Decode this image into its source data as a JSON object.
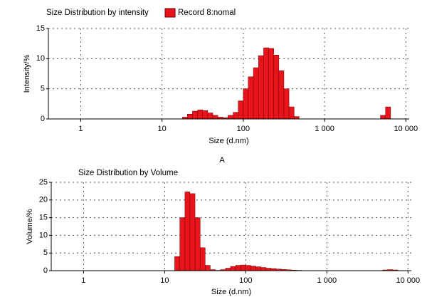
{
  "caption": "A",
  "chart_data": [
    {
      "type": "histogram",
      "title": "Size Distribution by intensity",
      "x_label": "Size (d.nm)",
      "y_label": "Intensity/%",
      "log_x": true,
      "grid": true,
      "legend": "top",
      "xlim": [
        0.4,
        11000
      ],
      "xticks": [
        1,
        10,
        100,
        {
          "value": 1000,
          "label": "1 000"
        },
        {
          "value": 10000,
          "label": "10 000"
        }
      ],
      "ylim": [
        0,
        15
      ],
      "yticks": [
        0,
        5,
        10,
        15
      ],
      "bins": [
        17.8,
        20.5,
        23.7,
        27.4,
        31.6,
        36.5,
        42.2,
        48.7,
        56.2,
        64.9,
        75.0,
        86.6,
        100,
        115,
        133,
        154,
        178,
        205,
        237,
        274,
        316,
        365,
        422,
        487,
        562,
        649,
        750,
        866,
        1000,
        1155,
        1334,
        1540,
        1778,
        2054,
        2371,
        2738,
        3162,
        3652,
        4217,
        4870,
        5623,
        6494,
        7499
      ],
      "series": [
        {
          "name": "Record 8:nomal",
          "color": "#e8141c",
          "values": [
            0.3,
            0.8,
            1.3,
            1.5,
            1.4,
            1.0,
            0.6,
            0.3,
            0.2,
            0.6,
            1.1,
            3.0,
            5.0,
            7.0,
            8.5,
            10.5,
            11.8,
            11.7,
            10.6,
            8.0,
            5.0,
            2.0,
            0.4,
            0,
            0,
            0,
            0,
            0,
            0,
            0,
            0,
            0,
            0,
            0,
            0,
            0,
            0,
            0,
            0,
            0.6,
            2.0,
            0
          ]
        }
      ]
    },
    {
      "type": "histogram",
      "title": "Size Distribution by Volume",
      "x_label": "Size (d.nm)",
      "y_label": "Volume/%",
      "log_x": true,
      "grid": true,
      "xlim": [
        0.4,
        11000
      ],
      "xticks": [
        1,
        10,
        100,
        {
          "value": 1000,
          "label": "1 000"
        },
        {
          "value": 10000,
          "label": "10 000"
        }
      ],
      "ylim": [
        0,
        25
      ],
      "yticks": [
        0,
        5,
        10,
        15,
        20,
        25
      ],
      "bins": [
        13.3,
        15.4,
        17.8,
        20.5,
        23.7,
        27.4,
        31.6,
        36.5,
        42.2,
        48.7,
        56.2,
        64.9,
        75.0,
        86.6,
        100,
        115,
        133,
        154,
        178,
        205,
        237,
        274,
        316,
        365,
        422,
        487,
        562,
        649,
        750,
        866,
        1000,
        1155,
        1334,
        1540,
        1778,
        2054,
        2371,
        2738,
        3162,
        3652,
        4217,
        4870,
        5623,
        6494,
        7499
      ],
      "color": "#e8141c",
      "values": [
        4.0,
        15.0,
        22.3,
        21.8,
        15.0,
        6.5,
        1.5,
        0.3,
        0.1,
        0.3,
        0.7,
        1.2,
        1.5,
        1.6,
        1.5,
        1.3,
        1.1,
        0.9,
        0.7,
        0.6,
        0.45,
        0.35,
        0.25,
        0.15,
        0.1,
        0,
        0,
        0,
        0,
        0,
        0,
        0,
        0,
        0,
        0,
        0,
        0,
        0,
        0,
        0,
        0,
        0.2,
        0.3,
        0.2
      ]
    }
  ]
}
